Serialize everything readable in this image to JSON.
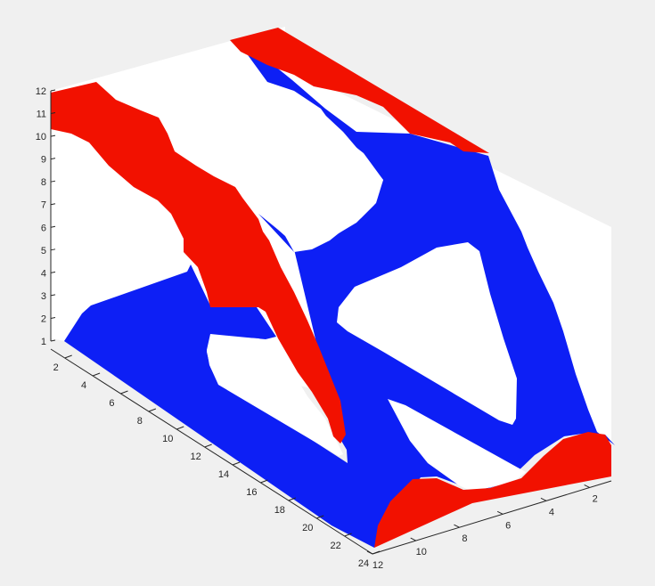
{
  "chart_data": {
    "type": "surface",
    "colors": {
      "top_face": "#f21100",
      "side_face": "#0d1ff5",
      "pane": "#ffffff",
      "figure_bg": "#f0f0f0",
      "axis": "#262626"
    },
    "xlim": [
      1,
      24
    ],
    "ylim": [
      1,
      12
    ],
    "zlim": [
      1,
      12
    ],
    "x_ticks": [
      "2",
      "4",
      "6",
      "8",
      "10",
      "12",
      "14",
      "16",
      "18",
      "20",
      "22",
      "24"
    ],
    "y_ticks": [
      "2",
      "4",
      "6",
      "8",
      "10",
      "12"
    ],
    "z_ticks": [
      "1",
      "2",
      "3",
      "4",
      "5",
      "6",
      "7",
      "8",
      "9",
      "10",
      "11",
      "12"
    ],
    "grid": false,
    "legend": "none",
    "xlabel": "",
    "ylabel": "",
    "zlabel": "",
    "title": ""
  }
}
